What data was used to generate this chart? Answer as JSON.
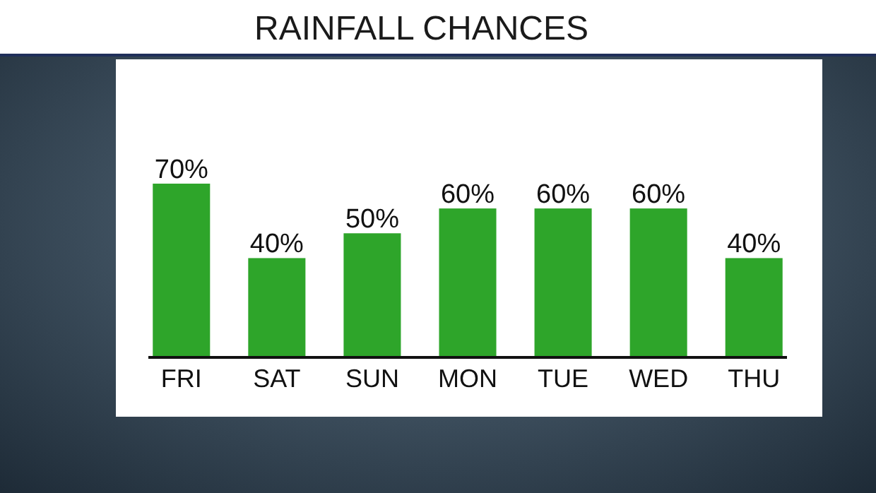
{
  "chart_data": {
    "type": "bar",
    "title": "RAINFALL CHANCES",
    "categories": [
      "FRI",
      "SAT",
      "SUN",
      "MON",
      "TUE",
      "WED",
      "THU"
    ],
    "values": [
      70,
      40,
      50,
      60,
      60,
      60,
      40
    ],
    "value_labels": [
      "70%",
      "40%",
      "50%",
      "60%",
      "60%",
      "60%",
      "40%"
    ],
    "color": "#2ea52a"
  }
}
